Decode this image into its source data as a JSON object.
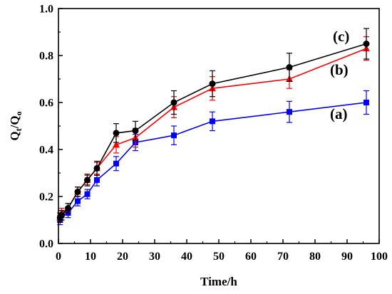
{
  "chart_data": {
    "type": "line",
    "xlabel": "Time/h",
    "ylabel": "Q",
    "ylabel_sub1": "t",
    "ylabel_mid": "/Q",
    "ylabel_sub2": "o",
    "xlim": [
      0,
      100
    ],
    "ylim": [
      0.0,
      1.0
    ],
    "xticks": [
      0,
      10,
      20,
      30,
      40,
      50,
      60,
      70,
      80,
      90,
      100
    ],
    "yticks": [
      0.0,
      0.2,
      0.4,
      0.6,
      0.8,
      1.0
    ],
    "xtick_labels": [
      "0",
      "10",
      "20",
      "30",
      "40",
      "50",
      "60",
      "70",
      "80",
      "90",
      "100"
    ],
    "ytick_labels": [
      "0.0",
      "0.2",
      "0.4",
      "0.6",
      "0.8",
      "1.0"
    ],
    "grid": false,
    "series": [
      {
        "name": "(a)",
        "color": "#0000ff",
        "marker": "square",
        "x": [
          0.5,
          1,
          3,
          6,
          9,
          12,
          18,
          24,
          36,
          48,
          72,
          96
        ],
        "y": [
          0.1,
          0.12,
          0.13,
          0.18,
          0.21,
          0.27,
          0.34,
          0.43,
          0.46,
          0.52,
          0.56,
          0.6
        ],
        "err": [
          0.02,
          0.02,
          0.02,
          0.02,
          0.02,
          0.025,
          0.03,
          0.035,
          0.04,
          0.04,
          0.045,
          0.05
        ]
      },
      {
        "name": "(b)",
        "color": "#ff0000",
        "marker": "triangle",
        "x": [
          0.5,
          1,
          3,
          6,
          9,
          12,
          18,
          24,
          36,
          48,
          72,
          96
        ],
        "y": [
          0.11,
          0.13,
          0.15,
          0.22,
          0.27,
          0.32,
          0.42,
          0.45,
          0.58,
          0.66,
          0.7,
          0.83
        ],
        "err": [
          0.02,
          0.02,
          0.02,
          0.02,
          0.02,
          0.025,
          0.035,
          0.04,
          0.045,
          0.05,
          0.04,
          0.05
        ]
      },
      {
        "name": "(c)",
        "color": "#000000",
        "marker": "circle",
        "x": [
          0.5,
          1,
          3,
          6,
          9,
          12,
          18,
          24,
          36,
          48,
          72,
          96
        ],
        "y": [
          0.11,
          0.12,
          0.15,
          0.22,
          0.27,
          0.32,
          0.47,
          0.48,
          0.6,
          0.68,
          0.75,
          0.85
        ],
        "err": [
          0.02,
          0.02,
          0.02,
          0.02,
          0.025,
          0.03,
          0.04,
          0.04,
          0.05,
          0.055,
          0.06,
          0.065
        ]
      }
    ]
  }
}
